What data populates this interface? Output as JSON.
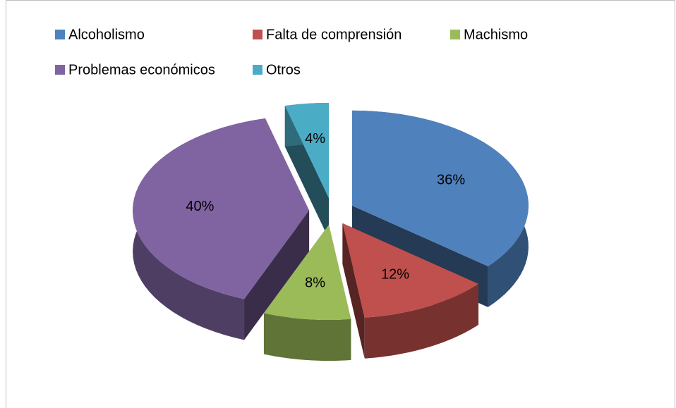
{
  "chart_data": {
    "type": "pie",
    "categories": [
      "Alcoholismo",
      "Falta de comprensión",
      "Machismo",
      "Problemas económicos",
      "Otros"
    ],
    "values": [
      36,
      12,
      8,
      40,
      4
    ],
    "value_labels": [
      "36%",
      "12%",
      "8%",
      "40%",
      "4%"
    ],
    "colors": [
      "#4f81bd",
      "#c0504d",
      "#9bbb59",
      "#8064a2",
      "#4bacc6"
    ],
    "legend": "top"
  }
}
